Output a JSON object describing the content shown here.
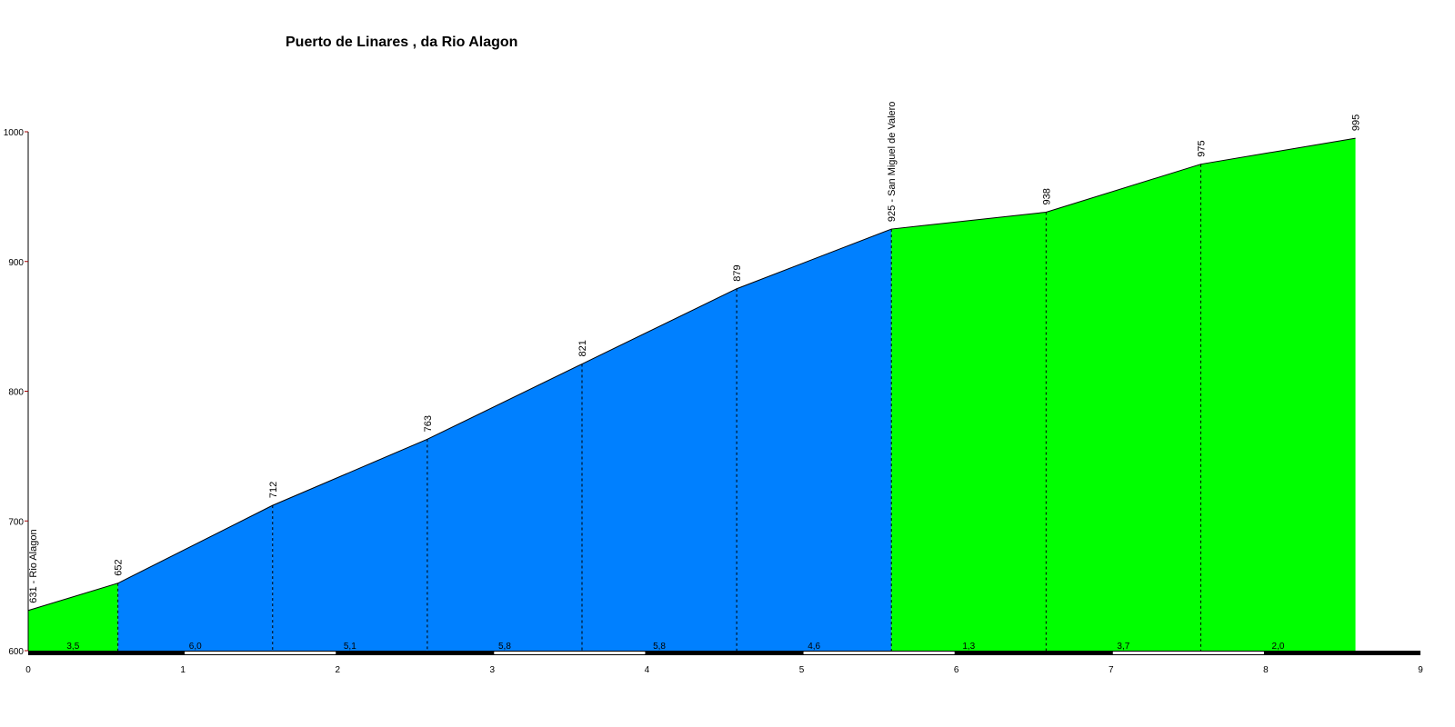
{
  "chart_data": {
    "type": "area",
    "title": "Puerto de Linares , da Rio Alagon",
    "xlabel": "",
    "ylabel": "",
    "xlim": [
      0,
      9
    ],
    "ylim": [
      600,
      1000
    ],
    "y_ticks": [
      "600",
      "700",
      "800",
      "900",
      "1000"
    ],
    "x_ticks": [
      "0",
      "1",
      "2",
      "3",
      "4",
      "5",
      "6",
      "7",
      "8",
      "9"
    ],
    "points": [
      {
        "x": 0.0,
        "y": 631,
        "label": "631 - Rio Alagon"
      },
      {
        "x": 0.58,
        "y": 652,
        "label": "652"
      },
      {
        "x": 1.58,
        "y": 712,
        "label": "712"
      },
      {
        "x": 2.58,
        "y": 763,
        "label": "763"
      },
      {
        "x": 3.58,
        "y": 821,
        "label": "821"
      },
      {
        "x": 4.58,
        "y": 879,
        "label": "879"
      },
      {
        "x": 5.58,
        "y": 925,
        "label": "925 - San Miguel de Valero"
      },
      {
        "x": 6.58,
        "y": 938,
        "label": "938"
      },
      {
        "x": 7.58,
        "y": 975,
        "label": "975"
      },
      {
        "x": 8.58,
        "y": 995,
        "label": "995"
      }
    ],
    "segments": [
      {
        "from": 0.0,
        "to": 0.58,
        "gradient": "3,5",
        "color": "#00ff00"
      },
      {
        "from": 0.58,
        "to": 1.58,
        "gradient": "6,0",
        "color": "#0080ff"
      },
      {
        "from": 1.58,
        "to": 2.58,
        "gradient": "5,1",
        "color": "#0080ff"
      },
      {
        "from": 2.58,
        "to": 3.58,
        "gradient": "5,8",
        "color": "#0080ff"
      },
      {
        "from": 3.58,
        "to": 4.58,
        "gradient": "5,8",
        "color": "#0080ff"
      },
      {
        "from": 4.58,
        "to": 5.58,
        "gradient": "4,6",
        "color": "#0080ff"
      },
      {
        "from": 5.58,
        "to": 6.58,
        "gradient": "1,3",
        "color": "#00ff00"
      },
      {
        "from": 6.58,
        "to": 7.58,
        "gradient": "3,7",
        "color": "#00ff00"
      },
      {
        "from": 7.58,
        "to": 8.58,
        "gradient": "2,0",
        "color": "#00ff00"
      }
    ]
  }
}
